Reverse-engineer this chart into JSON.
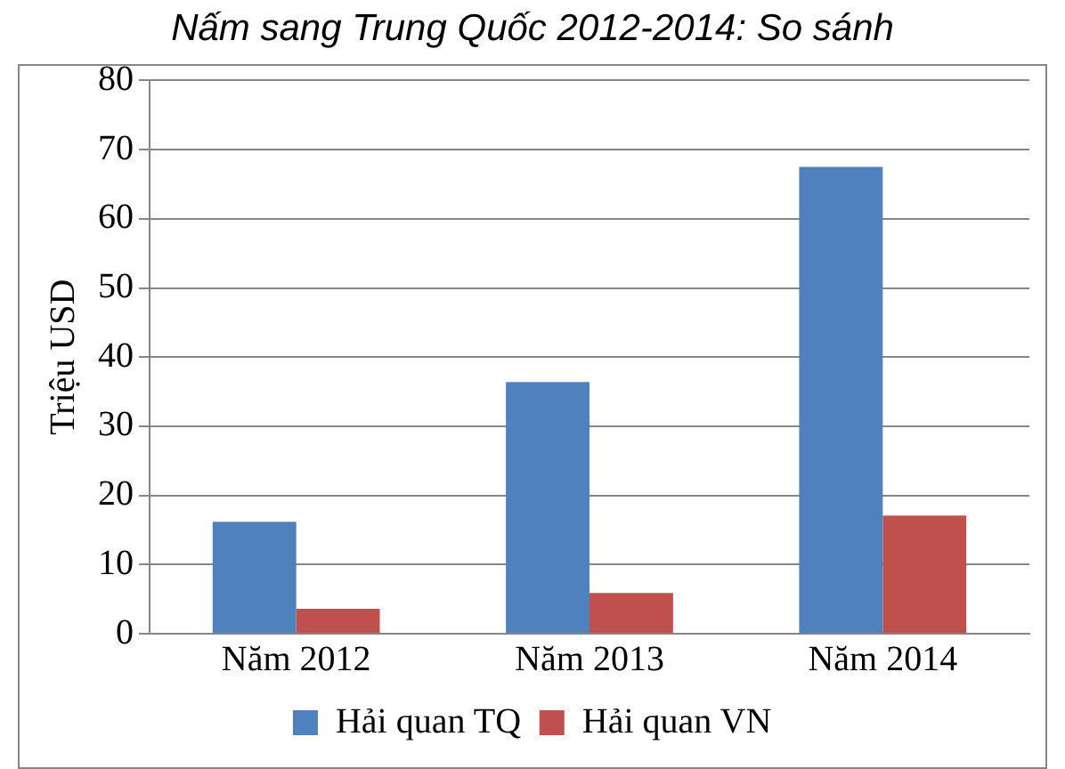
{
  "chart_data": {
    "type": "bar",
    "title": "Nấm sang Trung Quốc 2012-2014: So sánh",
    "ylabel": "Triệu USD",
    "categories": [
      "Năm 2012",
      "Năm 2013",
      "Năm 2014"
    ],
    "series": [
      {
        "name": "Hải quan TQ",
        "color": "#4f81bd",
        "values": [
          16.2,
          36.4,
          67.5
        ]
      },
      {
        "name": "Hải quan VN",
        "color": "#c0504d",
        "values": [
          3.6,
          5.9,
          17.1
        ]
      }
    ],
    "ylim": [
      0,
      80
    ],
    "yticks": [
      0,
      10,
      20,
      30,
      40,
      50,
      60,
      70,
      80
    ],
    "grid": "y",
    "legend": "bottom"
  }
}
